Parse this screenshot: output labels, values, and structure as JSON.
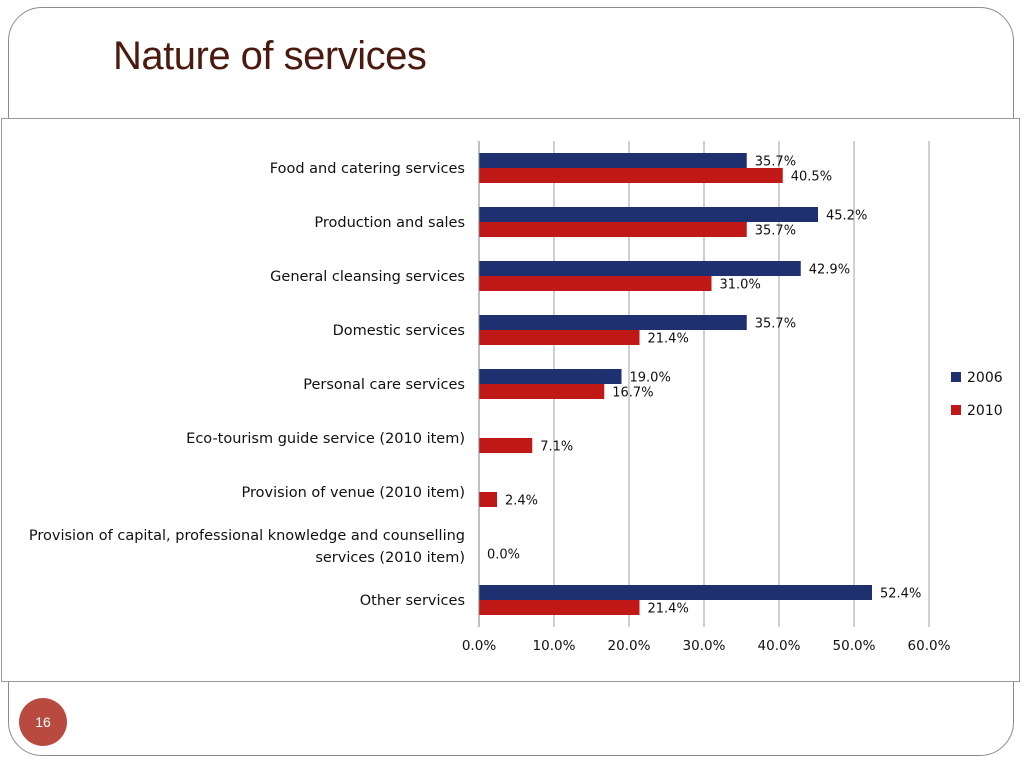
{
  "slide": {
    "title": "Nature of services",
    "page_number": "16"
  },
  "colors": {
    "title": "#4a1a0e",
    "series_2006": "#1f3070",
    "series_2010": "#c01717",
    "page_badge": "#b84a40"
  },
  "chart_data": {
    "type": "bar",
    "orientation": "horizontal",
    "categories": [
      [
        "Food and catering services"
      ],
      [
        "Production and sales"
      ],
      [
        "General cleansing services"
      ],
      [
        "Domestic services"
      ],
      [
        "Personal care services"
      ],
      [
        "Eco-tourism guide service (2010 item)"
      ],
      [
        "Provision of venue (2010 item)"
      ],
      [
        "Provision of capital, professional knowledge and counselling",
        "services (2010 item)"
      ],
      [
        "Other services"
      ]
    ],
    "series": [
      {
        "name": "2006",
        "values": [
          35.7,
          45.2,
          42.9,
          35.7,
          19.0,
          null,
          null,
          null,
          52.4
        ],
        "labels": [
          "35.7%",
          "45.2%",
          "42.9%",
          "35.7%",
          "19.0%",
          null,
          null,
          null,
          "52.4%"
        ]
      },
      {
        "name": "2010",
        "values": [
          40.5,
          35.7,
          31.0,
          21.4,
          16.7,
          7.1,
          2.4,
          0.0,
          21.4
        ],
        "labels": [
          "40.5%",
          "35.7%",
          "31.0%",
          "21.4%",
          "16.7%",
          "7.1%",
          "2.4%",
          "0.0%",
          "21.4%"
        ]
      }
    ],
    "xlim": [
      0,
      60
    ],
    "xticks": [
      0,
      10,
      20,
      30,
      40,
      50,
      60
    ],
    "xtick_labels": [
      "0.0%",
      "10.0%",
      "20.0%",
      "30.0%",
      "40.0%",
      "50.0%",
      "60.0%"
    ],
    "grid": "vertical",
    "legend_placement": "right"
  }
}
